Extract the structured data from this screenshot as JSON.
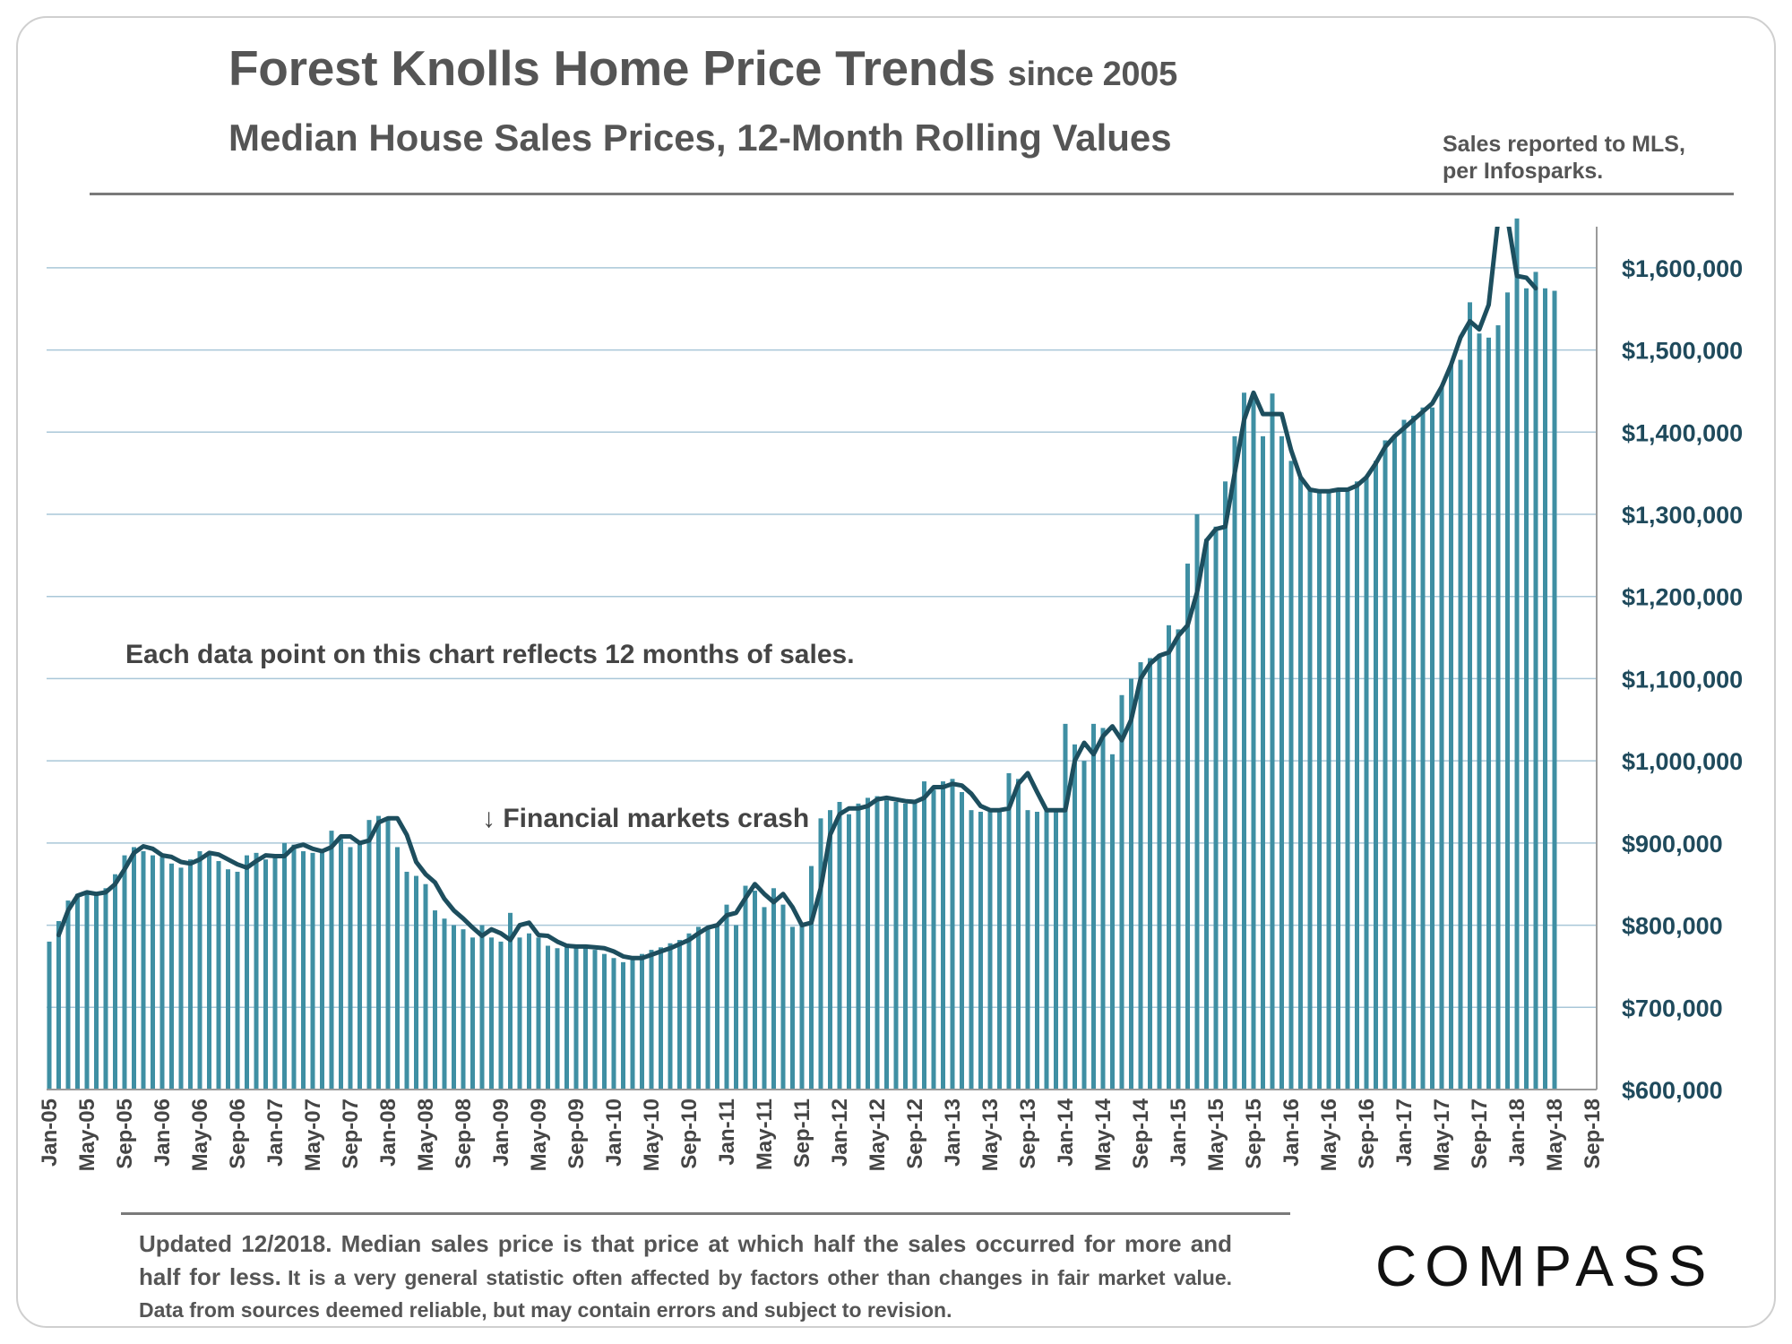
{
  "header": {
    "title": "Forest Knolls Home Price Trends",
    "title_suffix": "since 2005",
    "subtitle": "Median House Sales Prices, 12-Month Rolling Values",
    "source_line1": "Sales reported to MLS,",
    "source_line2": "per Infosparks."
  },
  "footer": {
    "note_big": "Updated 12/2018. Median sales price is that price at which half the sales occurred for more and half for less.",
    "note_small": "It is a very general statistic often affected by factors other than changes in fair market value. Data from sources deemed reliable, but may contain errors and subject to revision.",
    "logo": "COMPASS"
  },
  "colors": {
    "bar": "#3f8fa3",
    "line": "#1d4e5e",
    "grid": "#a9c7d8",
    "axis_text": "#1f4a5c"
  },
  "chart_data": {
    "type": "bar",
    "title": "Forest Knolls Home Price Trends since 2005",
    "subtitle": "Median House Sales Prices, 12-Month Rolling Values",
    "xlabel": "",
    "ylabel": "",
    "ylim": [
      600000,
      1650000
    ],
    "y_ticks": [
      600000,
      700000,
      800000,
      900000,
      1000000,
      1100000,
      1200000,
      1300000,
      1400000,
      1500000,
      1600000
    ],
    "y_tick_labels": [
      "$600,000",
      "$700,000",
      "$800,000",
      "$900,000",
      "$1,000,000",
      "$1,100,000",
      "$1,200,000",
      "$1,300,000",
      "$1,400,000",
      "$1,500,000",
      "$1,600,000"
    ],
    "x_tick_labels": [
      "Jan-05",
      "May-05",
      "Sep-05",
      "Jan-06",
      "May-06",
      "Sep-06",
      "Jan-07",
      "May-07",
      "Sep-07",
      "Jan-08",
      "May-08",
      "Sep-08",
      "Jan-09",
      "May-09",
      "Sep-09",
      "Jan-10",
      "May-10",
      "Sep-10",
      "Jan-11",
      "May-11",
      "Sep-11",
      "Jan-12",
      "May-12",
      "Sep-12",
      "Jan-13",
      "May-13",
      "Sep-13",
      "Jan-14",
      "May-14",
      "Sep-14",
      "Jan-15",
      "May-15",
      "Sep-15",
      "Jan-16",
      "May-16",
      "Sep-16",
      "Jan-17",
      "May-17",
      "Sep-17",
      "Jan-18",
      "May-18",
      "Sep-18"
    ],
    "annotations": {
      "note": "Each data point on this chart reflects 12 months of sales.",
      "crash": "↓ Financial markets crash",
      "crash_month": "Dec-08"
    },
    "series": [
      {
        "name": "Monthly median (bars)",
        "type": "bar",
        "start": "Jan-05",
        "values": [
          780000,
          805000,
          830000,
          838000,
          840000,
          837000,
          845000,
          862000,
          885000,
          895000,
          890000,
          885000,
          883000,
          875000,
          870000,
          880000,
          890000,
          885000,
          878000,
          868000,
          865000,
          885000,
          888000,
          880000,
          882000,
          900000,
          898000,
          890000,
          888000,
          892000,
          915000,
          905000,
          895000,
          900000,
          928000,
          933000,
          930000,
          895000,
          865000,
          860000,
          850000,
          818000,
          808000,
          800000,
          795000,
          785000,
          800000,
          785000,
          780000,
          815000,
          785000,
          790000,
          785000,
          775000,
          772000,
          775000,
          773000,
          773000,
          770000,
          765000,
          760000,
          755000,
          758000,
          765000,
          770000,
          773000,
          778000,
          782000,
          790000,
          798000,
          798000,
          800000,
          825000,
          800000,
          848000,
          842000,
          822000,
          845000,
          825000,
          798000,
          800000,
          872000,
          930000,
          940000,
          950000,
          935000,
          948000,
          955000,
          957000,
          952000,
          950000,
          948000,
          950000,
          975000,
          965000,
          975000,
          978000,
          962000,
          940000,
          938000,
          938000,
          940000,
          985000,
          978000,
          940000,
          938000,
          940000,
          938000,
          1045000,
          1020000,
          1000000,
          1045000,
          1040000,
          1008000,
          1080000,
          1100000,
          1120000,
          1125000,
          1130000,
          1165000,
          1160000,
          1240000,
          1300000,
          1270000,
          1285000,
          1340000,
          1395000,
          1448000,
          1445000,
          1395000,
          1447000,
          1395000,
          1365000,
          1345000,
          1330000,
          1328000,
          1330000,
          1328000,
          1330000,
          1340000,
          1345000,
          1365000,
          1390000,
          1395000,
          1415000,
          1420000,
          1430000,
          1430000,
          1455000,
          1482000,
          1488000,
          1558000,
          1520000,
          1515000,
          1530000,
          1570000,
          1660000,
          1575000,
          1595000,
          1575000,
          1572000
        ]
      },
      {
        "name": "12-month rolling median (line)",
        "type": "line",
        "start": "Feb-05",
        "values": [
          788000,
          818000,
          836000,
          840000,
          838000,
          840000,
          850000,
          868000,
          888000,
          896000,
          893000,
          885000,
          883000,
          877000,
          875000,
          880000,
          888000,
          886000,
          880000,
          874000,
          870000,
          878000,
          885000,
          884000,
          884000,
          895000,
          898000,
          893000,
          890000,
          895000,
          908000,
          908000,
          900000,
          903000,
          925000,
          930000,
          930000,
          910000,
          877000,
          862000,
          852000,
          832000,
          818000,
          808000,
          797000,
          787000,
          795000,
          790000,
          782000,
          800000,
          803000,
          788000,
          787000,
          780000,
          775000,
          774000,
          774000,
          773000,
          772000,
          768000,
          762000,
          760000,
          760000,
          764000,
          768000,
          772000,
          777000,
          782000,
          790000,
          797000,
          800000,
          812000,
          815000,
          833000,
          850000,
          838000,
          828000,
          838000,
          822000,
          800000,
          803000,
          845000,
          910000,
          935000,
          942000,
          942000,
          945000,
          953000,
          955000,
          953000,
          951000,
          950000,
          955000,
          968000,
          968000,
          972000,
          970000,
          960000,
          945000,
          940000,
          940000,
          942000,
          972000,
          985000,
          962000,
          940000,
          940000,
          940000,
          1000000,
          1022000,
          1008000,
          1030000,
          1042000,
          1025000,
          1050000,
          1100000,
          1118000,
          1128000,
          1132000,
          1152000,
          1165000,
          1205000,
          1268000,
          1282000,
          1285000,
          1350000,
          1415000,
          1448000,
          1422000,
          1422000,
          1422000,
          1378000,
          1345000,
          1330000,
          1328000,
          1328000,
          1330000,
          1330000,
          1335000,
          1345000,
          1362000,
          1382000,
          1395000,
          1405000,
          1415000,
          1425000,
          1435000,
          1455000,
          1482000,
          1515000,
          1535000,
          1525000,
          1555000,
          1658000,
          1660000,
          1590000,
          1588000,
          1575000
        ]
      }
    ]
  }
}
